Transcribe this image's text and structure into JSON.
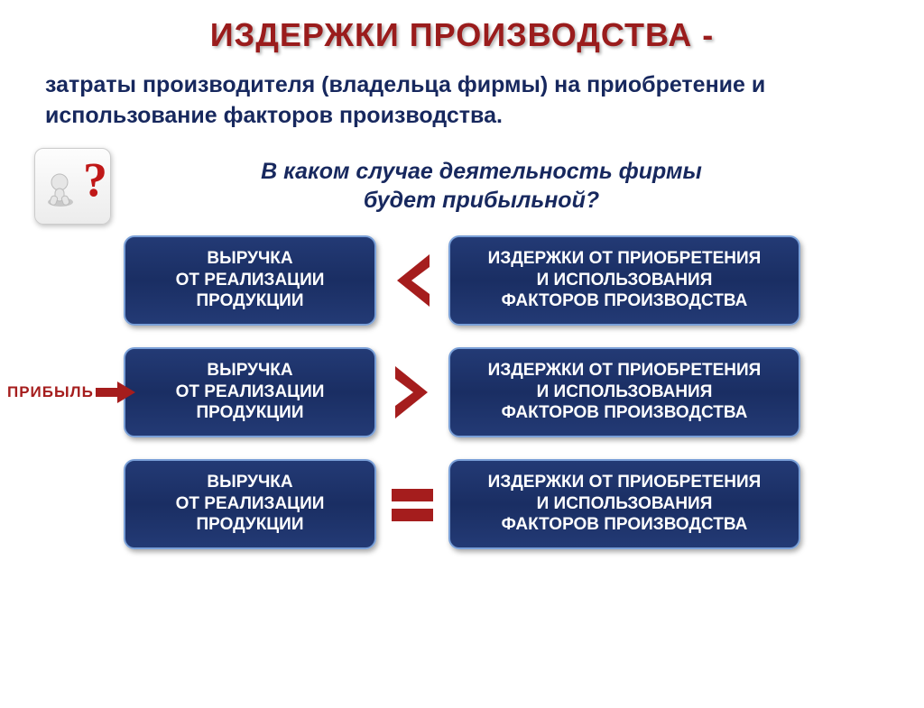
{
  "title": {
    "text": "ИЗДЕРЖКИ ПРОИЗВОДСТВА -",
    "color": "#9a1c1c",
    "fontsize": 36
  },
  "definition": {
    "text": "затраты производителя (владельца фирмы) на приобретение и использование факторов производства.",
    "color": "#17285e",
    "fontsize": 25
  },
  "question": {
    "line1": "В каком случае деятельность фирмы",
    "line2": "будет прибыльной?",
    "color": "#17285e",
    "fontsize": 25
  },
  "icon": {
    "question_color": "#c01818",
    "figure_color": "#dcdcdc"
  },
  "box_style": {
    "bg": "#1e3166",
    "border": "#7aa0d8",
    "text_color": "#ffffff"
  },
  "left_box_text": "ВЫРУЧКА\nОТ РЕАЛИЗАЦИИ\nПРОДУКЦИИ",
  "right_box_text": "ИЗДЕРЖКИ ОТ ПРИОБРЕТЕНИЯ\nИ ИСПОЛЬЗОВАНИЯ\nФАКТОРОВ ПРОИЗВОДСТВА",
  "rows": [
    {
      "symbol": "lt",
      "profit": false
    },
    {
      "symbol": "gt",
      "profit": true
    },
    {
      "symbol": "eq",
      "profit": false
    }
  ],
  "symbol_color": "#a51d1d",
  "profit": {
    "label": "ПРИБЫЛЬ",
    "color": "#a51d1d"
  }
}
